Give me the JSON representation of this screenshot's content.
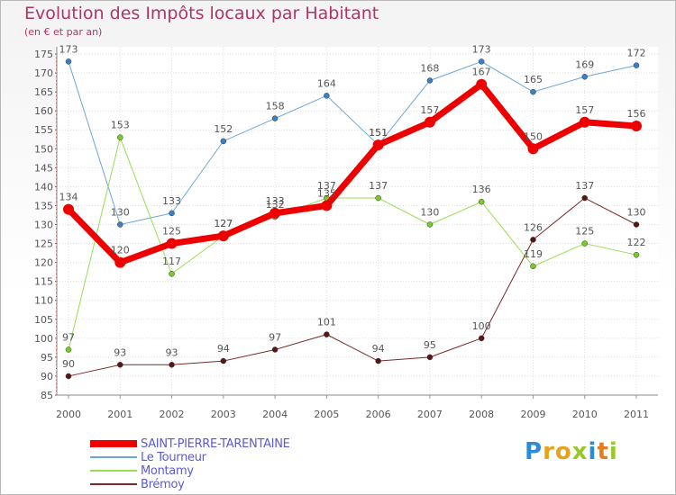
{
  "title": "Evolution des Impôts locaux par Habitant",
  "subtitle": "(en € et par an)",
  "logo": {
    "letters": [
      "P",
      "r",
      "o",
      "x",
      "i",
      "t",
      "i"
    ],
    "colors": [
      "#2e8bd8",
      "#e8a21a",
      "#e8a21a",
      "#9ac82b",
      "#2e8bd8",
      "#e87a1a",
      "#9ac82b"
    ]
  },
  "chart_data": {
    "type": "line",
    "title": "Evolution des Impôts locaux par Habitant",
    "ylabel": "(en € et par an)",
    "xlabel": "",
    "categories": [
      "2000",
      "2001",
      "2002",
      "2003",
      "2004",
      "2005",
      "2006",
      "2007",
      "2008",
      "2009",
      "2010",
      "2011"
    ],
    "ylim": [
      85,
      175
    ],
    "yticks": [
      85,
      90,
      95,
      100,
      105,
      110,
      115,
      120,
      125,
      130,
      135,
      140,
      145,
      150,
      155,
      160,
      165,
      170,
      175
    ],
    "grid": true,
    "legend_position": "bottom-left",
    "series": [
      {
        "name": "SAINT-PIERRE-TARENTAINE",
        "color": "#ee0000",
        "width": 7,
        "values": [
          134,
          120,
          125,
          127,
          133,
          135,
          151,
          157,
          167,
          150,
          157,
          156
        ]
      },
      {
        "name": "Le Tourneur",
        "color": "#6ca6d9",
        "width": 1,
        "values": [
          173,
          130,
          133,
          152,
          158,
          164,
          151,
          168,
          173,
          165,
          169,
          172
        ]
      },
      {
        "name": "Montamy",
        "color": "#99dd55",
        "width": 1,
        "values": [
          97,
          153,
          117,
          127,
          132,
          137,
          137,
          130,
          136,
          119,
          125,
          122
        ]
      },
      {
        "name": "Brémoy",
        "color": "#7a2a2a",
        "width": 1,
        "values": [
          90,
          93,
          93,
          94,
          97,
          101,
          94,
          95,
          100,
          126,
          137,
          130
        ]
      }
    ]
  }
}
